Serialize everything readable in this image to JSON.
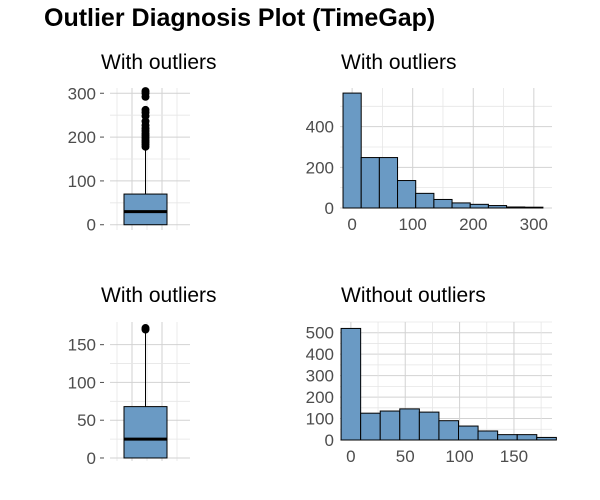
{
  "title": "Outlier Diagnosis Plot (TimeGap)",
  "colors": {
    "fill": "#6a9ac4",
    "outline": "#000000",
    "grid": "#d2d2d2",
    "text": "#4d4d4d"
  },
  "chart_data": [
    {
      "type": "box",
      "title": "With outliers",
      "ylim": [
        -12,
        312
      ],
      "yticks": [
        0,
        100,
        200,
        300
      ],
      "q1": 0,
      "median": 30,
      "q3": 70,
      "whisker_low": 0,
      "whisker_high": 172,
      "outliers": [
        178,
        183,
        188,
        193,
        198,
        203,
        208,
        214,
        220,
        227,
        236,
        248,
        256,
        262,
        292,
        300,
        305
      ],
      "grid": true
    },
    {
      "type": "bar",
      "title": "With outliers",
      "xlim": [
        -20,
        330
      ],
      "ylim": [
        0,
        590
      ],
      "xticks": [
        0,
        100,
        200,
        300
      ],
      "yticks": [
        0,
        200,
        400
      ],
      "bins": [
        -15,
        15,
        45,
        75,
        105,
        135,
        165,
        195,
        225,
        255,
        285,
        315
      ],
      "counts": [
        565,
        248,
        248,
        135,
        72,
        42,
        25,
        18,
        12,
        5,
        4
      ],
      "grid": true
    },
    {
      "type": "box",
      "title": "With outliers",
      "ylim": [
        -4,
        180
      ],
      "yticks": [
        0,
        50,
        100,
        150
      ],
      "q1": 0,
      "median": 25,
      "q3": 68,
      "whisker_low": 0,
      "whisker_high": 167,
      "outliers": [
        170,
        172
      ],
      "grid": true
    },
    {
      "type": "bar",
      "title": "Without outliers",
      "xlim": [
        -10,
        185
      ],
      "ylim": [
        0,
        550
      ],
      "xticks": [
        0,
        50,
        100,
        150
      ],
      "yticks": [
        0,
        100,
        200,
        300,
        400,
        500
      ],
      "bins": [
        -9,
        9,
        27,
        45,
        63,
        81,
        99,
        117,
        135,
        153,
        171,
        189
      ],
      "counts": [
        520,
        125,
        135,
        145,
        130,
        90,
        65,
        42,
        25,
        25,
        12
      ],
      "grid": true
    }
  ]
}
